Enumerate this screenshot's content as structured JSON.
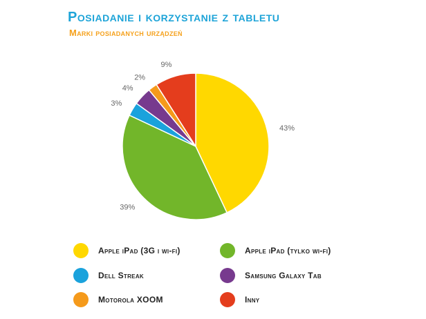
{
  "header": {
    "title": "Posiadanie i korzystanie z tabletu",
    "subtitle": "Marki posiadanych urządzeń"
  },
  "chart_data": {
    "type": "pie",
    "title": "Posiadanie i korzystanie z tabletu",
    "subtitle": "Marki posiadanych urządzeń",
    "slices": [
      {
        "label": "Apple iPad (3G i wi-fi)",
        "value": 43,
        "display": "43%",
        "color": "#ffd800"
      },
      {
        "label": "Apple iPad (tylko wi-fi)",
        "value": 39,
        "display": "39%",
        "color": "#72b62a"
      },
      {
        "label": "Dell Streak",
        "value": 3,
        "display": "3%",
        "color": "#1aa2dc"
      },
      {
        "label": "Samsung Galaxy Tab",
        "value": 4,
        "display": "4%",
        "color": "#773a8e"
      },
      {
        "label": "Motorola XOOM",
        "value": 2,
        "display": "2%",
        "color": "#f59a1b"
      },
      {
        "label": "Inny",
        "value": 9,
        "display": "9%",
        "color": "#e43d1d"
      }
    ],
    "start_direction": "12 o'clock",
    "direction": "clockwise",
    "legend_placement": "bottom"
  },
  "legend": [
    {
      "label": "Apple iPad (3G i wi-fi)",
      "color": "#ffd800"
    },
    {
      "label": "Apple iPad (tylko wi-fi)",
      "color": "#72b62a"
    },
    {
      "label": "Dell Streak",
      "color": "#1aa2dc"
    },
    {
      "label": "Samsung Galaxy Tab",
      "color": "#773a8e"
    },
    {
      "label": "Motorola XOOM",
      "color": "#f59a1b"
    },
    {
      "label": "Inny",
      "color": "#e43d1d"
    }
  ]
}
